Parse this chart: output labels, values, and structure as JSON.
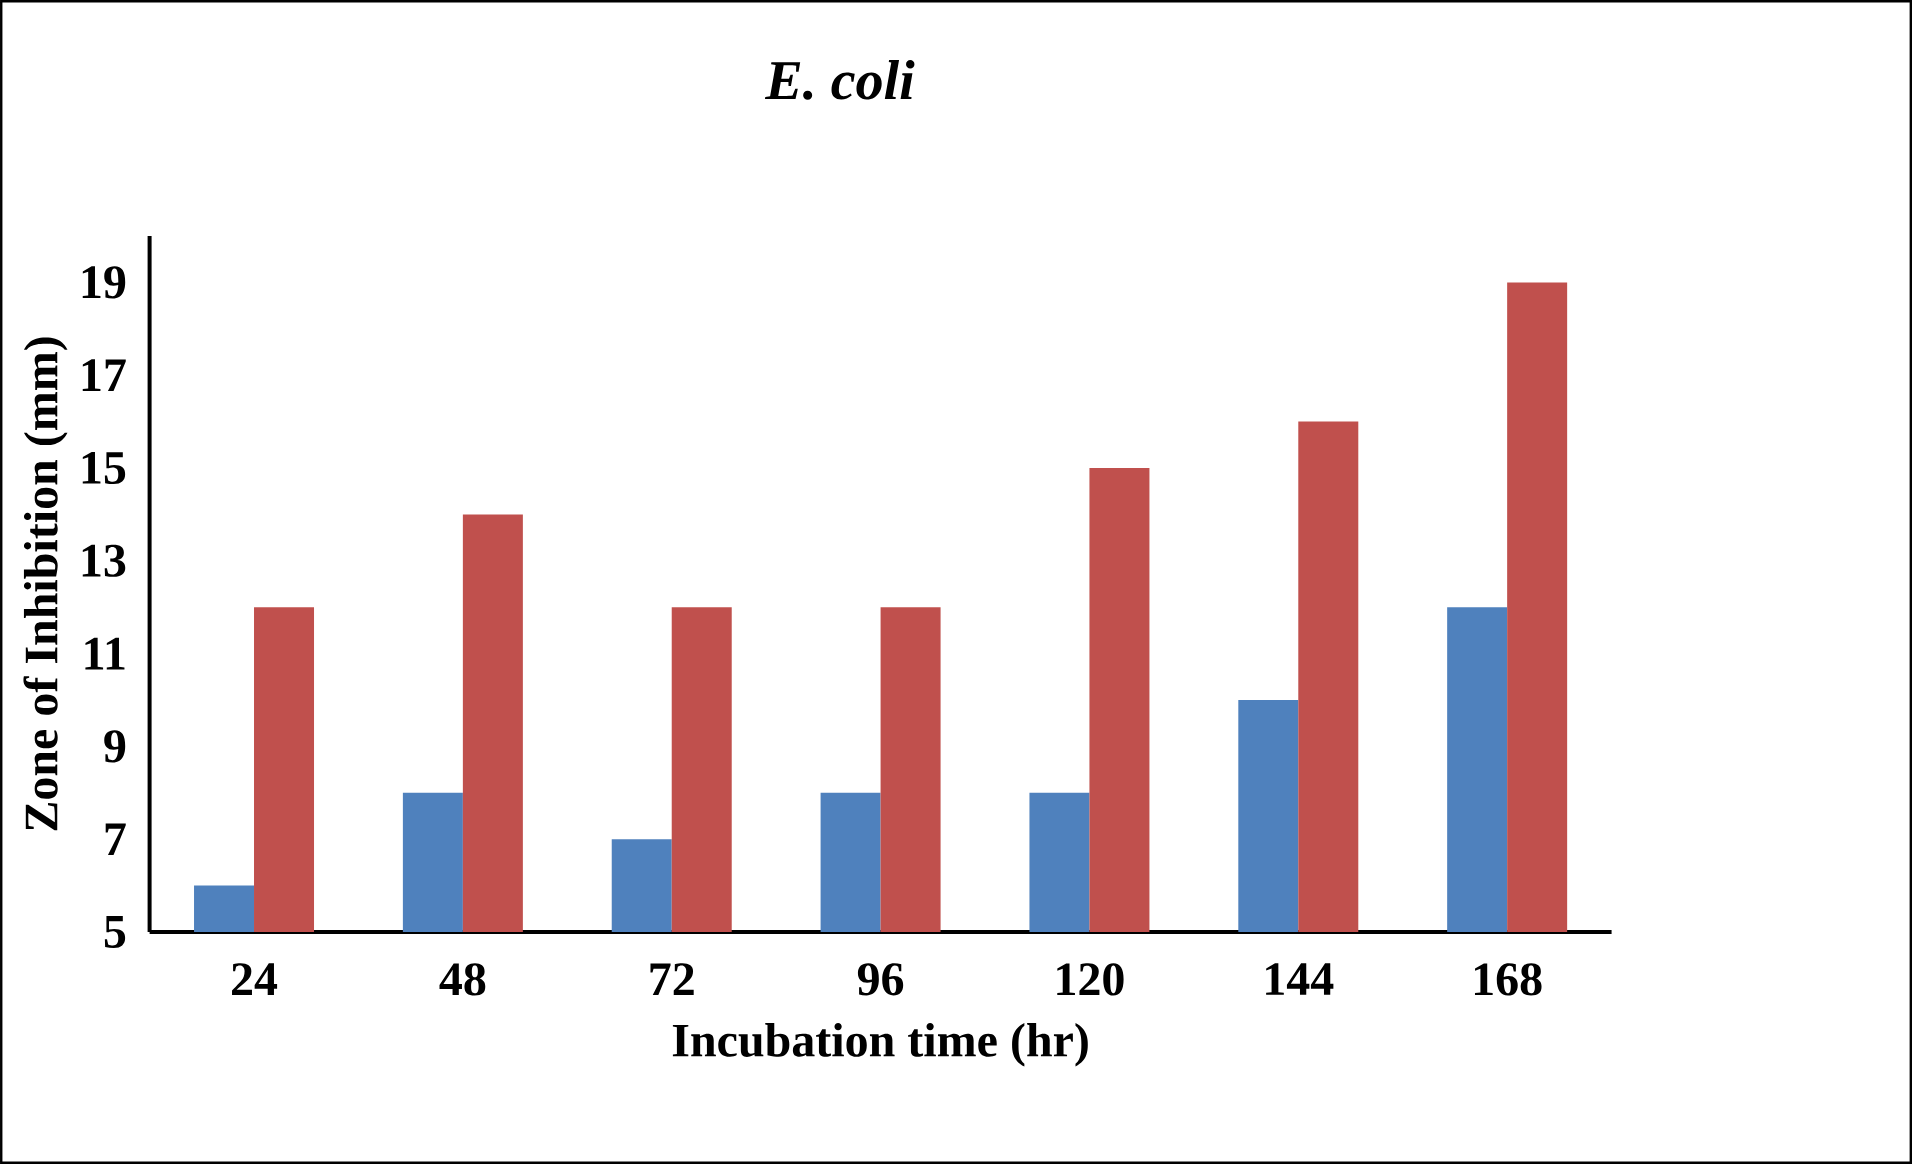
{
  "chart_data": {
    "type": "bar",
    "title": "E. coli",
    "xlabel": "Incubation time (hr)",
    "ylabel": "Zone of Inhibition (mm)",
    "categories": [
      "24",
      "48",
      "72",
      "96",
      "120",
      "144",
      "168"
    ],
    "series": [
      {
        "color": "#4f81bd",
        "values": [
          6,
          8,
          7,
          8,
          8,
          10,
          12
        ]
      },
      {
        "color": "#c0504d",
        "values": [
          12,
          14,
          12,
          12,
          15,
          16,
          19
        ]
      }
    ],
    "ylim": [
      5,
      20
    ],
    "yticks": [
      5,
      7,
      9,
      11,
      13,
      15,
      17,
      19
    ]
  }
}
